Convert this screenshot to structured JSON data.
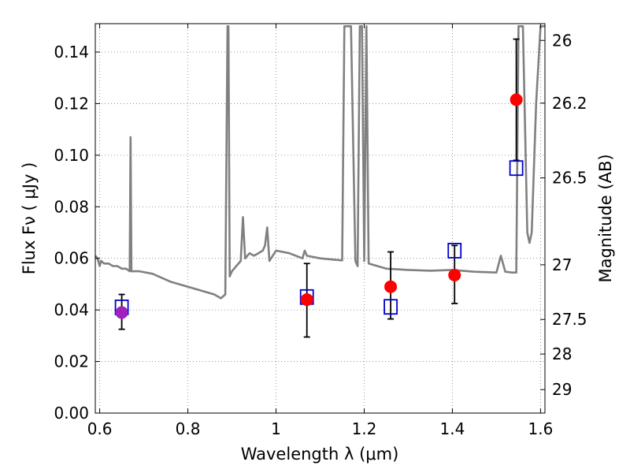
{
  "chart_data": {
    "type": "scatter",
    "xlabel": "Wavelength  λ (μm)",
    "ylabel": "Flux  Fν  ( μJy )",
    "ylabel_right": "Magnitude (AB)",
    "xlim": [
      0.59,
      1.61
    ],
    "ylim": [
      0.0,
      0.151
    ],
    "grid": true,
    "x_ticks": [
      {
        "value": 0.6,
        "label": "0.6"
      },
      {
        "value": 0.8,
        "label": "0.8"
      },
      {
        "value": 1.0,
        "label": "1"
      },
      {
        "value": 1.2,
        "label": "1.2"
      },
      {
        "value": 1.4,
        "label": "1.4"
      },
      {
        "value": 1.6,
        "label": "1.6"
      }
    ],
    "y_ticks": [
      {
        "value": 0.0,
        "label": "0.00"
      },
      {
        "value": 0.02,
        "label": "0.02"
      },
      {
        "value": 0.04,
        "label": "0.04"
      },
      {
        "value": 0.06,
        "label": "0.06"
      },
      {
        "value": 0.08,
        "label": "0.08"
      },
      {
        "value": 0.1,
        "label": "0.10"
      },
      {
        "value": 0.12,
        "label": "0.12"
      },
      {
        "value": 0.14,
        "label": "0.14"
      }
    ],
    "y2_ticks": [
      {
        "flux": 0.1445,
        "label": "26"
      },
      {
        "flux": 0.1202,
        "label": "26.2"
      },
      {
        "flux": 0.0912,
        "label": "26.5"
      },
      {
        "flux": 0.0575,
        "label": "27"
      },
      {
        "flux": 0.0363,
        "label": "27.5"
      },
      {
        "flux": 0.0229,
        "label": "28"
      },
      {
        "flux": 0.0091,
        "label": "29"
      }
    ],
    "colors": {
      "model": "#808080",
      "observed": "#ff0000",
      "observed_first": "#a020c0",
      "observed_error": "#000000",
      "synthetic": "#0000cc",
      "grid": "#808080"
    },
    "series": [
      {
        "type": "line",
        "x": [
          0.59,
          0.595,
          0.6,
          0.603,
          0.61,
          0.62,
          0.63,
          0.64,
          0.65,
          0.66,
          0.668,
          0.67,
          0.672,
          0.675,
          0.69,
          0.72,
          0.76,
          0.8,
          0.84,
          0.86,
          0.875,
          0.885,
          0.89,
          0.892,
          0.895,
          0.9,
          0.91,
          0.92,
          0.925,
          0.93,
          0.94,
          0.95,
          0.96,
          0.97,
          0.975,
          0.98,
          0.985,
          1.0,
          1.03,
          1.06,
          1.065,
          1.07,
          1.1,
          1.13,
          1.15,
          1.155,
          1.16,
          1.17,
          1.18,
          1.185,
          1.19,
          1.195,
          1.2,
          1.205,
          1.21,
          1.25,
          1.3,
          1.35,
          1.4,
          1.45,
          1.5,
          1.51,
          1.52,
          1.535,
          1.545,
          1.55,
          1.56,
          1.57,
          1.575,
          1.58,
          1.59,
          1.6,
          1.61
        ],
        "y": [
          0.061,
          0.06,
          0.057,
          0.059,
          0.058,
          0.058,
          0.057,
          0.057,
          0.056,
          0.056,
          0.055,
          0.107,
          0.055,
          0.055,
          0.055,
          0.054,
          0.051,
          0.049,
          0.047,
          0.046,
          0.0445,
          0.046,
          0.15,
          0.15,
          0.053,
          0.055,
          0.057,
          0.059,
          0.076,
          0.06,
          0.062,
          0.061,
          0.062,
          0.063,
          0.065,
          0.072,
          0.059,
          0.063,
          0.062,
          0.06,
          0.063,
          0.061,
          0.06,
          0.0595,
          0.0592,
          0.15,
          0.15,
          0.15,
          0.059,
          0.057,
          0.15,
          0.15,
          0.059,
          0.15,
          0.058,
          0.056,
          0.0555,
          0.0552,
          0.0555,
          0.0548,
          0.0545,
          0.061,
          0.0548,
          0.0545,
          0.0545,
          0.15,
          0.15,
          0.07,
          0.066,
          0.07,
          0.12,
          0.15,
          0.15
        ]
      },
      {
        "type": "scatter",
        "x": [
          0.65,
          1.07,
          1.26,
          1.405,
          1.545
        ],
        "y": [
          0.039,
          0.044,
          0.049,
          0.0535,
          0.1215
        ],
        "yerr_low": [
          0.0325,
          0.0295,
          0.0365,
          0.0425,
          0.098
        ],
        "yerr_high": [
          0.046,
          0.058,
          0.0625,
          0.065,
          0.145
        ]
      },
      {
        "type": "scatter",
        "x": [
          0.65,
          1.07,
          1.26,
          1.405,
          1.545
        ],
        "y": [
          0.041,
          0.045,
          0.0412,
          0.063,
          0.095
        ]
      }
    ]
  }
}
